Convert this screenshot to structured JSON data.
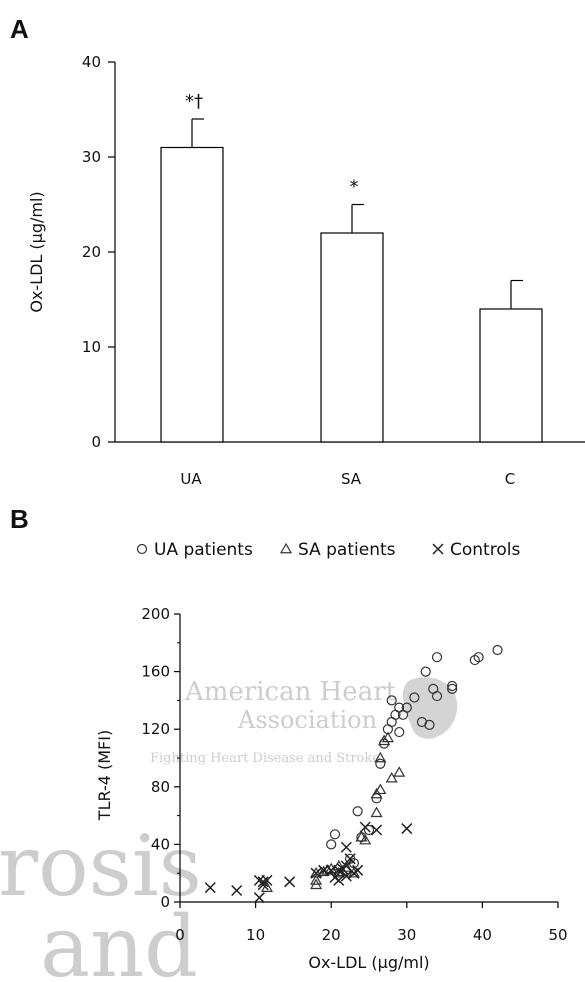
{
  "chart_data": [
    {
      "type": "bar",
      "panel": "A",
      "categories": [
        "UA",
        "SA",
        "C"
      ],
      "values": [
        31,
        22,
        14
      ],
      "errors": [
        3,
        3,
        3
      ],
      "annotations": [
        "*†",
        "*",
        ""
      ],
      "ylabel": "Ox-LDL (μg/ml)",
      "ylim": [
        0,
        40
      ],
      "yticks": [
        0,
        10,
        20,
        30,
        40
      ],
      "bar_fill": "#ffffff",
      "bar_stroke": "#000000"
    },
    {
      "type": "scatter",
      "panel": "B",
      "xlabel": "Ox-LDL (μg/ml)",
      "ylabel": "TLR-4 (MFI)",
      "xlim": [
        0,
        50
      ],
      "ylim": [
        0,
        200
      ],
      "xticks": [
        0,
        10,
        20,
        30,
        40,
        50
      ],
      "yticks": [
        0,
        40,
        80,
        120,
        160,
        200
      ],
      "legend_position": "top",
      "series": [
        {
          "name": "UA patients",
          "marker": "circle",
          "points": [
            [
              20,
              40
            ],
            [
              20.5,
              47
            ],
            [
              22.5,
              30
            ],
            [
              23,
              27
            ],
            [
              23.5,
              63
            ],
            [
              24,
              45
            ],
            [
              25,
              50
            ],
            [
              26,
              72
            ],
            [
              26.5,
              96
            ],
            [
              27,
              110
            ],
            [
              27.5,
              120
            ],
            [
              28,
              125
            ],
            [
              28,
              140
            ],
            [
              28.5,
              130
            ],
            [
              29,
              118
            ],
            [
              29,
              135
            ],
            [
              29.5,
              130
            ],
            [
              30,
              135
            ],
            [
              31,
              142
            ],
            [
              32,
              125
            ],
            [
              32.5,
              160
            ],
            [
              33,
              123
            ],
            [
              33.5,
              148
            ],
            [
              34,
              143
            ],
            [
              34,
              170
            ],
            [
              36,
              150
            ],
            [
              36,
              148
            ],
            [
              39,
              168
            ],
            [
              39.5,
              170
            ],
            [
              42,
              175
            ]
          ]
        },
        {
          "name": "SA patients",
          "marker": "triangle",
          "points": [
            [
              11.5,
              10
            ],
            [
              18,
              12
            ],
            [
              18,
              15
            ],
            [
              18,
              20
            ],
            [
              19,
              21
            ],
            [
              19.5,
              22
            ],
            [
              20,
              23
            ],
            [
              21,
              25
            ],
            [
              21,
              20
            ],
            [
              21.5,
              21
            ],
            [
              22,
              24
            ],
            [
              23,
              20
            ],
            [
              24,
              45
            ],
            [
              24.5,
              43
            ],
            [
              26,
              62
            ],
            [
              26,
              75
            ],
            [
              26.5,
              78
            ],
            [
              26.5,
              100
            ],
            [
              27,
              112
            ],
            [
              27.5,
              114
            ],
            [
              28,
              86
            ],
            [
              29,
              90
            ]
          ]
        },
        {
          "name": "Controls",
          "marker": "x",
          "points": [
            [
              4,
              10
            ],
            [
              7.5,
              8
            ],
            [
              10.5,
              15
            ],
            [
              10.5,
              3
            ],
            [
              11,
              14
            ],
            [
              11,
              12
            ],
            [
              11.5,
              15
            ],
            [
              14.5,
              14
            ],
            [
              18,
              20
            ],
            [
              19,
              22
            ],
            [
              20,
              22
            ],
            [
              20.5,
              17
            ],
            [
              21,
              15
            ],
            [
              21,
              22
            ],
            [
              21.5,
              23
            ],
            [
              22,
              18
            ],
            [
              22,
              25
            ],
            [
              22,
              38
            ],
            [
              22.5,
              30
            ],
            [
              23,
              20
            ],
            [
              23.5,
              22
            ],
            [
              24.5,
              52
            ],
            [
              26,
              50
            ],
            [
              30,
              51
            ]
          ]
        }
      ]
    }
  ]
}
